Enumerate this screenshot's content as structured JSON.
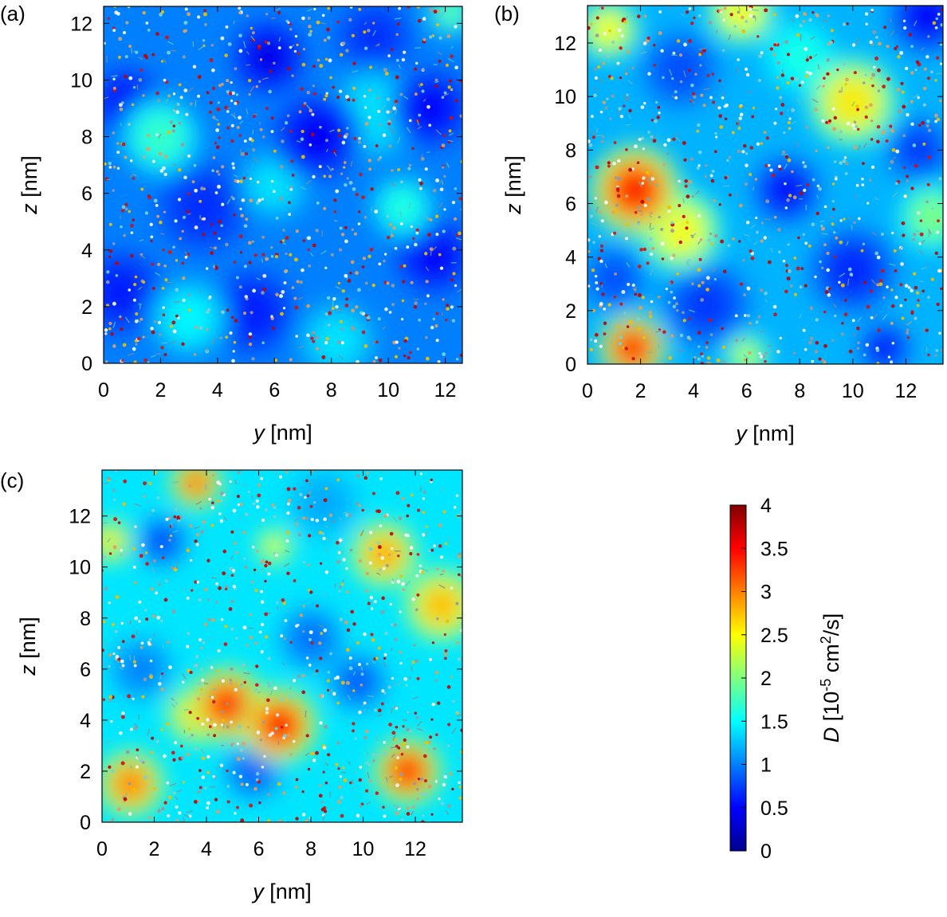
{
  "figure_title": "",
  "colorbar": {
    "label": "D [10^-5 cm^2/s]",
    "label_parts": {
      "var": "D",
      "pre": "[10",
      "exp": "-5",
      "mid": "cm",
      "exp2": "2",
      "post": "/s]"
    },
    "min": 0,
    "max": 4,
    "ticks": [
      "0",
      "0.5",
      "1",
      "1.5",
      "2",
      "2.5",
      "3",
      "3.5",
      "4"
    ],
    "colormap": [
      "#00008f",
      "#0000ff",
      "#0080ff",
      "#00ffff",
      "#80ff80",
      "#ffff00",
      "#ff8000",
      "#ff0000",
      "#800000"
    ]
  },
  "chart_data": [
    {
      "type": "heatmap",
      "panel_label": "(a)",
      "xlabel": "y [nm]",
      "ylabel": "z [nm]",
      "xlim": [
        0,
        12.6
      ],
      "ylim": [
        0,
        12.6
      ],
      "xticks": [
        "0",
        "2",
        "4",
        "6",
        "8",
        "10",
        "12"
      ],
      "yticks": [
        "0",
        "2",
        "4",
        "6",
        "8",
        "10",
        "12"
      ],
      "base_value": 1.0,
      "blobs": [
        {
          "y": 5.8,
          "z": 10.8,
          "D": 0.25,
          "r": 0.9
        },
        {
          "y": 7.5,
          "z": 8.0,
          "D": 0.35,
          "r": 1.1
        },
        {
          "y": 0.8,
          "z": 9.2,
          "D": 0.4,
          "r": 0.9
        },
        {
          "y": 11.5,
          "z": 9.0,
          "D": 0.4,
          "r": 1.0
        },
        {
          "y": 11.6,
          "z": 3.8,
          "D": 0.4,
          "r": 1.0
        },
        {
          "y": 0.6,
          "z": 2.5,
          "D": 0.5,
          "r": 1.1
        },
        {
          "y": 5.2,
          "z": 1.8,
          "D": 0.5,
          "r": 1.1
        },
        {
          "y": 3.5,
          "z": 5.5,
          "D": 0.6,
          "r": 1.2
        },
        {
          "y": 9.5,
          "z": 11.5,
          "D": 0.6,
          "r": 1.0
        },
        {
          "y": 2.0,
          "z": 8.0,
          "D": 1.9,
          "r": 1.0
        },
        {
          "y": 9.5,
          "z": 8.8,
          "D": 1.5,
          "r": 1.2
        },
        {
          "y": 10.5,
          "z": 5.5,
          "D": 1.8,
          "r": 0.8
        },
        {
          "y": 3.0,
          "z": 1.6,
          "D": 1.6,
          "r": 1.0
        },
        {
          "y": 8.2,
          "z": 0.8,
          "D": 1.5,
          "r": 1.0
        },
        {
          "y": 12.2,
          "z": 12.4,
          "D": 2.1,
          "r": 0.6
        },
        {
          "y": 6.0,
          "z": 6.3,
          "D": 1.5,
          "r": 0.9
        }
      ]
    },
    {
      "type": "heatmap",
      "panel_label": "(b)",
      "xlabel": "y [nm]",
      "ylabel": "z [nm]",
      "xlim": [
        0,
        13.4
      ],
      "ylim": [
        0,
        13.4
      ],
      "xticks": [
        "0",
        "2",
        "4",
        "6",
        "8",
        "10",
        "12"
      ],
      "yticks": [
        "0",
        "2",
        "4",
        "6",
        "8",
        "10",
        "12"
      ],
      "base_value": 1.2,
      "blobs": [
        {
          "y": 1.8,
          "z": 6.5,
          "D": 3.9,
          "r": 1.2
        },
        {
          "y": 3.5,
          "z": 5.0,
          "D": 2.8,
          "r": 1.1
        },
        {
          "y": 1.7,
          "z": 0.6,
          "D": 3.9,
          "r": 0.9
        },
        {
          "y": 10.0,
          "z": 9.8,
          "D": 2.9,
          "r": 1.2
        },
        {
          "y": 5.8,
          "z": 13.2,
          "D": 2.8,
          "r": 0.9
        },
        {
          "y": 0.8,
          "z": 12.5,
          "D": 2.8,
          "r": 0.8
        },
        {
          "y": 13.0,
          "z": 5.5,
          "D": 2.2,
          "r": 0.9
        },
        {
          "y": 6.0,
          "z": 0.3,
          "D": 2.5,
          "r": 0.6
        },
        {
          "y": 7.5,
          "z": 6.5,
          "D": 0.35,
          "r": 0.9
        },
        {
          "y": 12.8,
          "z": 13.0,
          "D": 0.3,
          "r": 1.0
        },
        {
          "y": 10.0,
          "z": 3.5,
          "D": 0.5,
          "r": 1.2
        },
        {
          "y": 4.5,
          "z": 2.2,
          "D": 0.6,
          "r": 1.2
        },
        {
          "y": 1.0,
          "z": 3.2,
          "D": 0.7,
          "r": 0.9
        },
        {
          "y": 12.5,
          "z": 8.0,
          "D": 0.6,
          "r": 0.9
        },
        {
          "y": 3.5,
          "z": 11.0,
          "D": 0.7,
          "r": 1.1
        },
        {
          "y": 11.2,
          "z": 0.6,
          "D": 0.4,
          "r": 0.7
        },
        {
          "y": 8.0,
          "z": 11.5,
          "D": 1.7,
          "r": 1.0
        }
      ]
    },
    {
      "type": "heatmap",
      "panel_label": "(c)",
      "xlabel": "y [nm]",
      "ylabel": "z [nm]",
      "xlim": [
        0,
        13.8
      ],
      "ylim": [
        0,
        13.8
      ],
      "xticks": [
        "0",
        "2",
        "4",
        "6",
        "8",
        "10",
        "12"
      ],
      "yticks": [
        "0",
        "2",
        "4",
        "6",
        "8",
        "10",
        "12"
      ],
      "base_value": 1.4,
      "blobs": [
        {
          "y": 4.8,
          "z": 4.6,
          "D": 3.8,
          "r": 1.0
        },
        {
          "y": 6.8,
          "z": 3.8,
          "D": 3.9,
          "r": 1.0
        },
        {
          "y": 3.6,
          "z": 4.2,
          "D": 3.0,
          "r": 0.8
        },
        {
          "y": 11.7,
          "z": 2.0,
          "D": 3.8,
          "r": 0.9
        },
        {
          "y": 1.1,
          "z": 1.5,
          "D": 3.4,
          "r": 0.9
        },
        {
          "y": 3.6,
          "z": 13.3,
          "D": 3.5,
          "r": 0.7
        },
        {
          "y": 10.8,
          "z": 10.5,
          "D": 3.2,
          "r": 0.9
        },
        {
          "y": 13.0,
          "z": 8.5,
          "D": 3.1,
          "r": 1.0
        },
        {
          "y": 0.3,
          "z": 11.0,
          "D": 2.9,
          "r": 0.6
        },
        {
          "y": 6.6,
          "z": 10.8,
          "D": 2.7,
          "r": 0.5
        },
        {
          "y": 2.3,
          "z": 11.0,
          "D": 0.6,
          "r": 0.7
        },
        {
          "y": 5.8,
          "z": 2.0,
          "D": 0.7,
          "r": 0.8
        },
        {
          "y": 9.8,
          "z": 5.5,
          "D": 0.7,
          "r": 0.8
        },
        {
          "y": 8.0,
          "z": 7.2,
          "D": 0.8,
          "r": 0.9
        },
        {
          "y": 1.5,
          "z": 6.0,
          "D": 0.9,
          "r": 0.9
        },
        {
          "y": 8.5,
          "z": 12.5,
          "D": 1.1,
          "r": 1.0
        }
      ]
    }
  ]
}
